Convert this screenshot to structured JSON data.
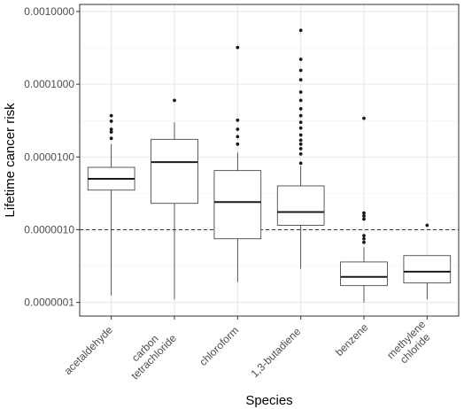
{
  "chart_data": {
    "type": "boxplot",
    "xlabel": "Species",
    "ylabel": "Lifetime cancer risk",
    "y_scale": "log10",
    "ylim": [
      6.5e-08,
      0.00125
    ],
    "y_ticks": [
      1e-07,
      1e-06,
      1e-05,
      0.0001,
      0.001
    ],
    "y_tick_labels": [
      "0.0000001",
      "0.0000010",
      "0.0000100",
      "0.0001000",
      "0.0010000"
    ],
    "reference_line": 1e-06,
    "reference_line_style": "dashed",
    "grid": true,
    "categories": [
      [
        "acetaldehyde"
      ],
      [
        "carbon",
        "tetrachloride"
      ],
      [
        "chloroform"
      ],
      [
        "1,3-butadiene"
      ],
      [
        "benzene"
      ],
      [
        "methylene",
        "chloride"
      ]
    ],
    "boxes": [
      {
        "min": 1.25e-07,
        "q1": 3.5e-06,
        "median": 5e-06,
        "q3": 7.2e-06,
        "max": 1.5e-05,
        "outliers": [
          1.8e-05,
          2.2e-05,
          2.4e-05,
          3.1e-05,
          3.7e-05
        ]
      },
      {
        "min": 1.1e-07,
        "q1": 2.3e-06,
        "median": 8.5e-06,
        "q3": 1.75e-05,
        "max": 3e-05,
        "outliers": [
          6e-05
        ]
      },
      {
        "min": 1.9e-07,
        "q1": 7.5e-07,
        "median": 2.4e-06,
        "q3": 6.5e-06,
        "max": 1.15e-05,
        "outliers": [
          1.5e-05,
          1.9e-05,
          2.4e-05,
          3.2e-05,
          0.00032
        ]
      },
      {
        "min": 2.9e-07,
        "q1": 1.15e-06,
        "median": 1.75e-06,
        "q3": 4e-06,
        "max": 7.5e-06,
        "outliers": [
          8.2e-06,
          1.1e-05,
          1.3e-05,
          1.5e-05,
          1.7e-05,
          2e-05,
          2.5e-05,
          3e-05,
          3.7e-05,
          4.6e-05,
          6e-05,
          7.8e-05,
          0.000115,
          0.000155,
          0.00022,
          0.00055
        ]
      },
      {
        "min": 1e-07,
        "q1": 1.7e-07,
        "median": 2.25e-07,
        "q3": 3.6e-07,
        "max": 5.7e-07,
        "outliers": [
          6.7e-07,
          7.5e-07,
          8.3e-07,
          1.4e-06,
          1.55e-06,
          1.7e-06,
          3.4e-05
        ]
      },
      {
        "min": 1.1e-07,
        "q1": 1.85e-07,
        "median": 2.65e-07,
        "q3": 4.4e-07,
        "max": 4.4e-07,
        "outliers": [
          1.15e-06
        ]
      }
    ]
  }
}
